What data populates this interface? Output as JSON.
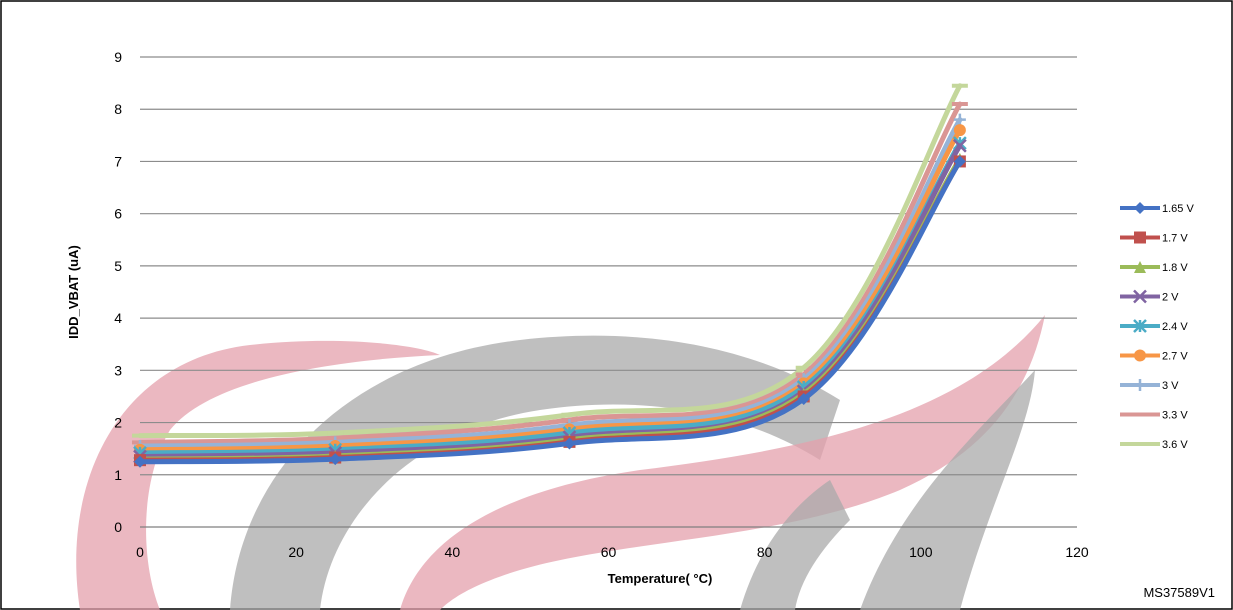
{
  "chart_data": {
    "type": "line",
    "title": "",
    "xlabel": "Temperature( °C)",
    "ylabel": "IDD_VBAT (uA)",
    "xlim": [
      0,
      120
    ],
    "ylim": [
      0,
      9
    ],
    "x_ticks": [
      0,
      20,
      40,
      60,
      80,
      100,
      120
    ],
    "y_ticks": [
      0,
      1,
      2,
      3,
      4,
      5,
      6,
      7,
      8,
      9
    ],
    "grid": "horizontal",
    "legend_position": "right",
    "figure_id": "MS37589V1",
    "x": [
      0,
      25,
      55,
      85,
      105
    ],
    "series": [
      {
        "name": "1.65 V",
        "color": "#4472C4",
        "marker": "diamond",
        "values": [
          1.25,
          1.3,
          1.6,
          2.45,
          7.0
        ]
      },
      {
        "name": "1.7 V",
        "color": "#C0504D",
        "marker": "square",
        "values": [
          1.28,
          1.33,
          1.63,
          2.5,
          7.0
        ]
      },
      {
        "name": "1.8 V",
        "color": "#9BBB59",
        "marker": "triangle",
        "values": [
          1.3,
          1.36,
          1.67,
          2.55,
          7.05
        ]
      },
      {
        "name": "2 V",
        "color": "#8064A2",
        "marker": "x",
        "values": [
          1.35,
          1.42,
          1.72,
          2.6,
          7.3
        ]
      },
      {
        "name": "2.4 V",
        "color": "#4BACC6",
        "marker": "asterisk",
        "values": [
          1.42,
          1.48,
          1.8,
          2.68,
          7.35
        ]
      },
      {
        "name": "2.7 V",
        "color": "#F79646",
        "marker": "circle",
        "values": [
          1.48,
          1.55,
          1.87,
          2.75,
          7.6
        ]
      },
      {
        "name": "3 V",
        "color": "#95B3D7",
        "marker": "plus",
        "values": [
          1.55,
          1.62,
          1.95,
          2.83,
          7.8
        ]
      },
      {
        "name": "3.3 V",
        "color": "#DA9694",
        "marker": "dash",
        "values": [
          1.62,
          1.7,
          2.05,
          2.92,
          8.1
        ]
      },
      {
        "name": "3.6 V",
        "color": "#C4D79B",
        "marker": "dash",
        "values": [
          1.75,
          1.8,
          2.15,
          3.05,
          8.45
        ]
      }
    ]
  }
}
